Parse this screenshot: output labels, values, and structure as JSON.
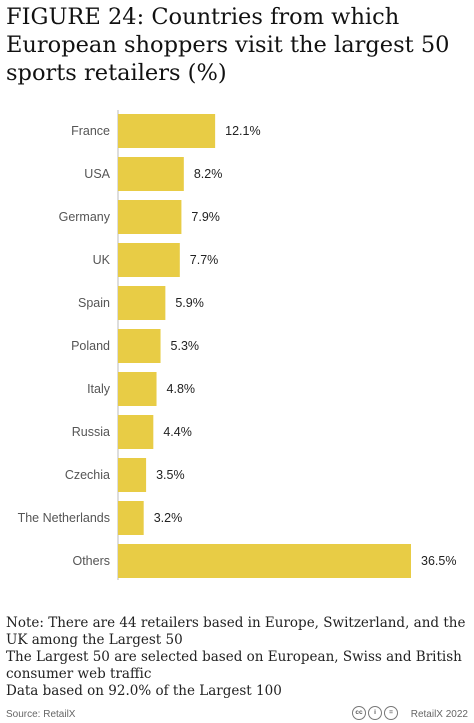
{
  "title": "FIGURE 24: Countries from which European shoppers visit the largest 50 sports retailers (%)",
  "chart_data": {
    "type": "bar",
    "orientation": "horizontal",
    "categories": [
      "France",
      "USA",
      "Germany",
      "UK",
      "Spain",
      "Poland",
      "Italy",
      "Russia",
      "Czechia",
      "The Netherlands",
      "Others"
    ],
    "values": [
      12.1,
      8.2,
      7.9,
      7.7,
      5.9,
      5.3,
      4.8,
      4.4,
      3.5,
      3.2,
      36.5
    ],
    "value_labels": [
      "12.1%",
      "8.2%",
      "7.9%",
      "7.7%",
      "5.9%",
      "5.3%",
      "4.8%",
      "4.4%",
      "3.5%",
      "3.2%",
      "36.5%"
    ],
    "xlabel": "",
    "ylabel": "",
    "xlim": [
      0,
      36.5
    ],
    "grid": false,
    "bar_color": "#e8cc45"
  },
  "notes": [
    "Note: There are 44 retailers based in Europe, Switzerland, and the UK among the Largest 50",
    "The Largest 50 are selected based on European, Swiss and British consumer web traffic",
    "Data based on 92.0% of the Largest 100"
  ],
  "footer": {
    "source": "Source: RetailX",
    "credit": "RetailX 2022",
    "license_icons": [
      "cc-icon",
      "by-icon",
      "nd-icon"
    ],
    "license_glyphs": [
      "cc",
      "i",
      "="
    ]
  }
}
